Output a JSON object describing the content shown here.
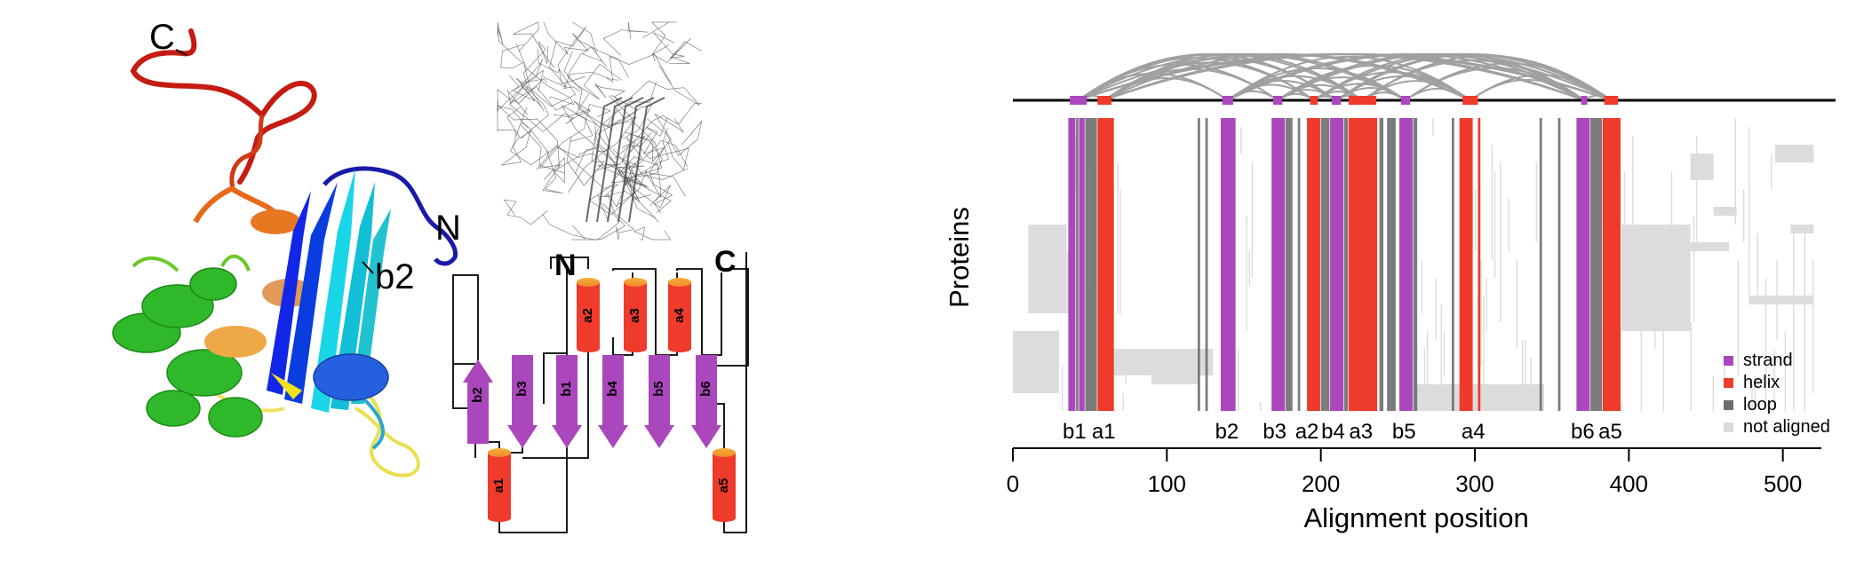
{
  "structure_panel": {
    "terminus_c": "C",
    "terminus_n": "N",
    "highlight_label": "b2"
  },
  "topology": {
    "terminus_n": "N",
    "terminus_c": "C",
    "strands": [
      "b2",
      "b3",
      "b1",
      "b4",
      "b5",
      "b6"
    ],
    "helices_top": [
      "a2",
      "a3",
      "a4"
    ],
    "helices_bottom": [
      "a1",
      "a5"
    ]
  },
  "chart_data": {
    "type": "alignment-track",
    "xlabel": "Alignment position",
    "ylabel": "Proteins",
    "xlim": [
      0,
      525
    ],
    "xticks": [
      0,
      100,
      200,
      300,
      400,
      500
    ],
    "legend_position": "bottom-right",
    "legend": [
      {
        "name": "strand",
        "color": "#ab47bc"
      },
      {
        "name": "helix",
        "color": "#ee3b2b"
      },
      {
        "name": "loop",
        "color": "#6e6e6e"
      },
      {
        "name": "not aligned",
        "color": "#dcdcdc"
      }
    ],
    "segment_labels": [
      {
        "text": "b1",
        "pos": 40
      },
      {
        "text": "a1",
        "pos": 59
      },
      {
        "text": "b2",
        "pos": 139
      },
      {
        "text": "b3",
        "pos": 170
      },
      {
        "text": "a2",
        "pos": 191
      },
      {
        "text": "b4",
        "pos": 208
      },
      {
        "text": "a3",
        "pos": 226
      },
      {
        "text": "b5",
        "pos": 254
      },
      {
        "text": "a4",
        "pos": 299
      },
      {
        "text": "b6",
        "pos": 370
      },
      {
        "text": "a5",
        "pos": 388
      }
    ],
    "track_segments": [
      {
        "type": "strand",
        "start": 37,
        "end": 48
      },
      {
        "type": "helix",
        "start": 55,
        "end": 64
      },
      {
        "type": "strand",
        "start": 136,
        "end": 143
      },
      {
        "type": "strand",
        "start": 169,
        "end": 175
      },
      {
        "type": "helix",
        "start": 193,
        "end": 198
      },
      {
        "type": "strand",
        "start": 207,
        "end": 213
      },
      {
        "type": "helix",
        "start": 218,
        "end": 236
      },
      {
        "type": "strand",
        "start": 252,
        "end": 258
      },
      {
        "type": "helix",
        "start": 292,
        "end": 302
      },
      {
        "type": "strand",
        "start": 369,
        "end": 373
      },
      {
        "type": "helix",
        "start": 384,
        "end": 393
      }
    ],
    "columns": [
      {
        "type": "strand",
        "start": 36,
        "end": 40
      },
      {
        "type": "loop",
        "start": 41,
        "end": 42
      },
      {
        "type": "strand",
        "start": 43,
        "end": 46
      },
      {
        "type": "loop",
        "start": 47,
        "end": 54
      },
      {
        "type": "helix",
        "start": 55,
        "end": 65
      },
      {
        "type": "loop",
        "start": 120,
        "end": 121
      },
      {
        "type": "loop",
        "start": 125,
        "end": 126
      },
      {
        "type": "strand",
        "start": 135,
        "end": 144
      },
      {
        "type": "strand",
        "start": 168,
        "end": 176
      },
      {
        "type": "loop",
        "start": 177,
        "end": 181
      },
      {
        "type": "loop",
        "start": 185,
        "end": 186
      },
      {
        "type": "helix",
        "start": 191,
        "end": 199
      },
      {
        "type": "loop",
        "start": 200,
        "end": 205
      },
      {
        "type": "strand",
        "start": 206,
        "end": 214
      },
      {
        "type": "loop",
        "start": 215,
        "end": 217
      },
      {
        "type": "helix",
        "start": 218,
        "end": 236
      },
      {
        "type": "loop",
        "start": 238,
        "end": 240
      },
      {
        "type": "loop",
        "start": 243,
        "end": 248
      },
      {
        "type": "strand",
        "start": 251,
        "end": 259
      },
      {
        "type": "loop",
        "start": 260,
        "end": 262
      },
      {
        "type": "loop",
        "start": 285,
        "end": 286
      },
      {
        "type": "helix",
        "start": 290,
        "end": 298
      },
      {
        "type": "helix",
        "start": 302,
        "end": 303
      },
      {
        "type": "loop",
        "start": 342,
        "end": 343
      },
      {
        "type": "loop",
        "start": 354,
        "end": 355
      },
      {
        "type": "strand",
        "start": 366,
        "end": 374
      },
      {
        "type": "loop",
        "start": 375,
        "end": 382
      },
      {
        "type": "helix",
        "start": 383,
        "end": 394
      }
    ]
  }
}
